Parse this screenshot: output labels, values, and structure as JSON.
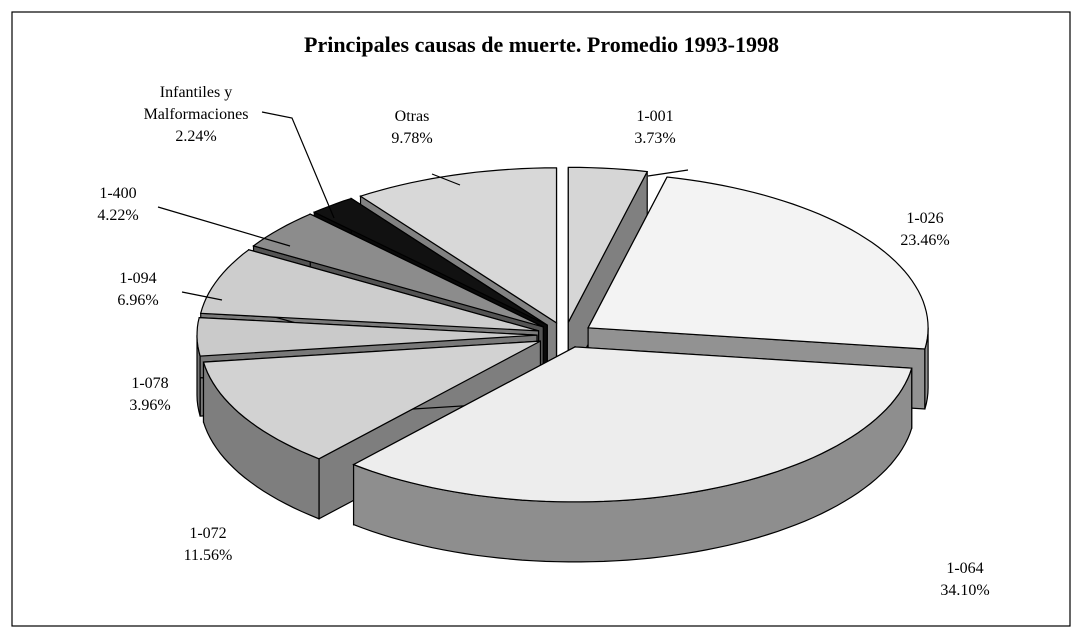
{
  "chart_data": {
    "type": "pie3d",
    "title": "Principales causas de muerte. Promedio 1993-1998",
    "categories": [
      "1-001",
      "1-026",
      "1-064",
      "1-072",
      "1-078",
      "1-094",
      "1-400",
      "Infantiles y Malformaciones",
      "Otras"
    ],
    "values": [
      3.73,
      23.46,
      34.1,
      11.56,
      3.96,
      6.96,
      4.22,
      2.24,
      9.78
    ],
    "value_labels": [
      "3.73%",
      "23.46%",
      "34.10%",
      "11.56%",
      "3.96%",
      "6.96%",
      "4.22%",
      "2.24%",
      "9.78%"
    ],
    "colors": [
      "#d6d6d6",
      "#f3f3f3",
      "#ededed",
      "#d2d2d2",
      "#cacaca",
      "#cdcdcd",
      "#8c8c8c",
      "#111111",
      "#d8d8d8"
    ]
  }
}
